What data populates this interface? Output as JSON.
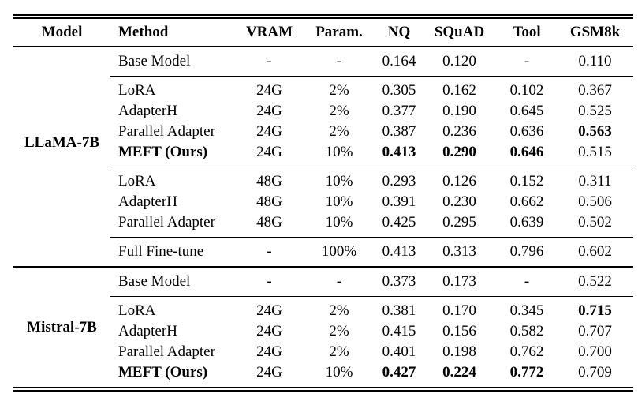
{
  "table": {
    "headers": [
      "Model",
      "Method",
      "VRAM",
      "Param.",
      "NQ",
      "SQuAD",
      "Tool",
      "GSM8k"
    ],
    "sections": [
      {
        "model": "LLaMA-7B",
        "groups": [
          {
            "rows": [
              {
                "method": "Base Model",
                "vram": "-",
                "param": "-",
                "nq": "0.164",
                "squad": "0.120",
                "tool": "-",
                "gsm8k": "0.110"
              }
            ]
          },
          {
            "rows": [
              {
                "method": "LoRA",
                "vram": "24G",
                "param": "2%",
                "nq": "0.305",
                "squad": "0.162",
                "tool": "0.102",
                "gsm8k": "0.367"
              },
              {
                "method": "AdapterH",
                "vram": "24G",
                "param": "2%",
                "nq": "0.377",
                "squad": "0.190",
                "tool": "0.645",
                "gsm8k": "0.525"
              },
              {
                "method": "Parallel Adapter",
                "vram": "24G",
                "param": "2%",
                "nq": "0.387",
                "squad": "0.236",
                "tool": "0.636",
                "gsm8k": "0.563"
              },
              {
                "method": "MEFT (Ours)",
                "vram": "24G",
                "param": "10%",
                "nq": "0.413",
                "squad": "0.290",
                "tool": "0.646",
                "gsm8k": "0.515"
              }
            ]
          },
          {
            "rows": [
              {
                "method": "LoRA",
                "vram": "48G",
                "param": "10%",
                "nq": "0.293",
                "squad": "0.126",
                "tool": "0.152",
                "gsm8k": "0.311"
              },
              {
                "method": "AdapterH",
                "vram": "48G",
                "param": "10%",
                "nq": "0.391",
                "squad": "0.230",
                "tool": "0.662",
                "gsm8k": "0.506"
              },
              {
                "method": "Parallel Adapter",
                "vram": "48G",
                "param": "10%",
                "nq": "0.425",
                "squad": "0.295",
                "tool": "0.639",
                "gsm8k": "0.502"
              }
            ]
          },
          {
            "rows": [
              {
                "method": "Full Fine-tune",
                "vram": "-",
                "param": "100%",
                "nq": "0.413",
                "squad": "0.313",
                "tool": "0.796",
                "gsm8k": "0.602"
              }
            ]
          }
        ]
      },
      {
        "model": "Mistral-7B",
        "groups": [
          {
            "rows": [
              {
                "method": "Base Model",
                "vram": "-",
                "param": "-",
                "nq": "0.373",
                "squad": "0.173",
                "tool": "-",
                "gsm8k": "0.522"
              }
            ]
          },
          {
            "rows": [
              {
                "method": "LoRA",
                "vram": "24G",
                "param": "2%",
                "nq": "0.381",
                "squad": "0.170",
                "tool": "0.345",
                "gsm8k": "0.715"
              },
              {
                "method": "AdapterH",
                "vram": "24G",
                "param": "2%",
                "nq": "0.415",
                "squad": "0.156",
                "tool": "0.582",
                "gsm8k": "0.707"
              },
              {
                "method": "Parallel Adapter",
                "vram": "24G",
                "param": "2%",
                "nq": "0.401",
                "squad": "0.198",
                "tool": "0.762",
                "gsm8k": "0.700"
              },
              {
                "method": "MEFT (Ours)",
                "vram": "24G",
                "param": "10%",
                "nq": "0.427",
                "squad": "0.224",
                "tool": "0.772",
                "gsm8k": "0.709"
              }
            ]
          }
        ]
      }
    ]
  }
}
